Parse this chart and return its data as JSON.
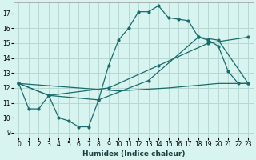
{
  "xlabel": "Humidex (Indice chaleur)",
  "bg_color": "#d8f4f0",
  "grid_color": "#b8d8d4",
  "line_color": "#1a6b6b",
  "xlim": [
    -0.5,
    23.5
  ],
  "ylim": [
    8.7,
    17.7
  ],
  "xticks": [
    0,
    1,
    2,
    3,
    4,
    5,
    6,
    7,
    8,
    9,
    10,
    11,
    12,
    13,
    14,
    15,
    16,
    17,
    18,
    19,
    20,
    21,
    22,
    23
  ],
  "yticks": [
    9,
    10,
    11,
    12,
    13,
    14,
    15,
    16,
    17
  ],
  "series1_x": [
    0,
    1,
    2,
    3,
    4,
    5,
    6,
    7,
    8,
    9,
    10,
    11,
    12,
    13,
    14,
    15,
    16,
    17,
    18,
    19,
    20,
    21,
    22,
    23
  ],
  "series1_y": [
    12.3,
    10.6,
    10.6,
    11.5,
    10.0,
    9.8,
    9.4,
    9.4,
    11.2,
    13.5,
    15.2,
    16.0,
    17.1,
    17.1,
    17.5,
    16.7,
    16.6,
    16.5,
    15.4,
    15.2,
    14.8,
    13.1,
    12.3,
    12.3
  ],
  "series2_x": [
    0,
    3,
    8,
    13,
    18,
    20,
    23
  ],
  "series2_y": [
    12.3,
    11.5,
    11.2,
    12.5,
    15.4,
    15.2,
    12.3
  ],
  "series3_x": [
    0,
    3,
    9,
    14,
    19,
    23
  ],
  "series3_y": [
    12.3,
    11.5,
    12.0,
    13.5,
    15.0,
    15.4
  ],
  "series4_x": [
    0,
    10,
    15,
    20,
    23
  ],
  "series4_y": [
    12.3,
    11.8,
    12.0,
    12.3,
    12.3
  ]
}
